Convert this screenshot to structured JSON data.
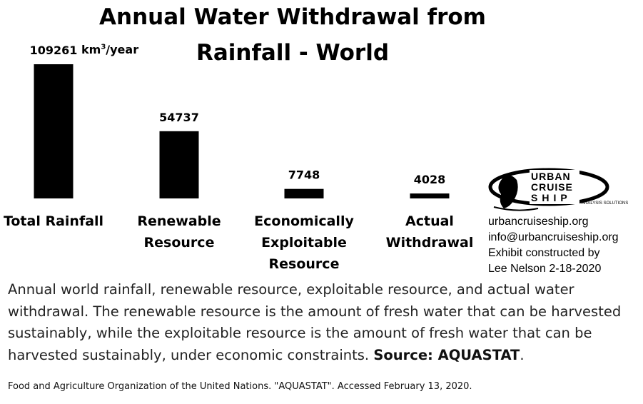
{
  "chart_data": {
    "type": "bar",
    "title_line1": "Annual Water Withdrawal from",
    "title_line2": "Rainfall - World",
    "unit": "km",
    "unit_sup": "3",
    "unit_suffix": "/year",
    "categories": [
      [
        "Total Rainfall"
      ],
      [
        "Renewable",
        "Resource"
      ],
      [
        "Economically",
        "Exploitable",
        "Resource"
      ],
      [
        "Actual",
        "Withdrawal"
      ]
    ],
    "values": [
      109261,
      54737,
      7748,
      4028
    ],
    "value_labels": [
      "109261",
      "54737",
      "7748",
      "4028"
    ],
    "bar_color": "#000000",
    "grid": false,
    "legend": "none"
  },
  "caption": {
    "text": "Annual world rainfall, renewable resource, exploitable resource, and actual water withdrawal. The renewable resource is the amount of fresh water that can be harvested sustainably, while the exploitable resource is the amount of fresh water that can be harvested sustainably, under economic constraints. ",
    "source_label": "Source: AQUASTAT",
    "end": "."
  },
  "footnote": "Food and Agriculture Organization of the United Nations. \"AQUASTAT\". Accessed February 13, 2020.",
  "logo": {
    "word1": "URBAN",
    "word2": "CRUISE",
    "word3": "SHIP",
    "sub": "ANALYSIS SOLUTIONS",
    "icon": "urban-cruise-ship-logo"
  },
  "contact": {
    "website": "urbancruiseship.org",
    "email": "info@urbancruiseship.org",
    "credit_line1": "Exhibit constructed by",
    "credit_line2": "Lee Nelson 2-18-2020"
  }
}
